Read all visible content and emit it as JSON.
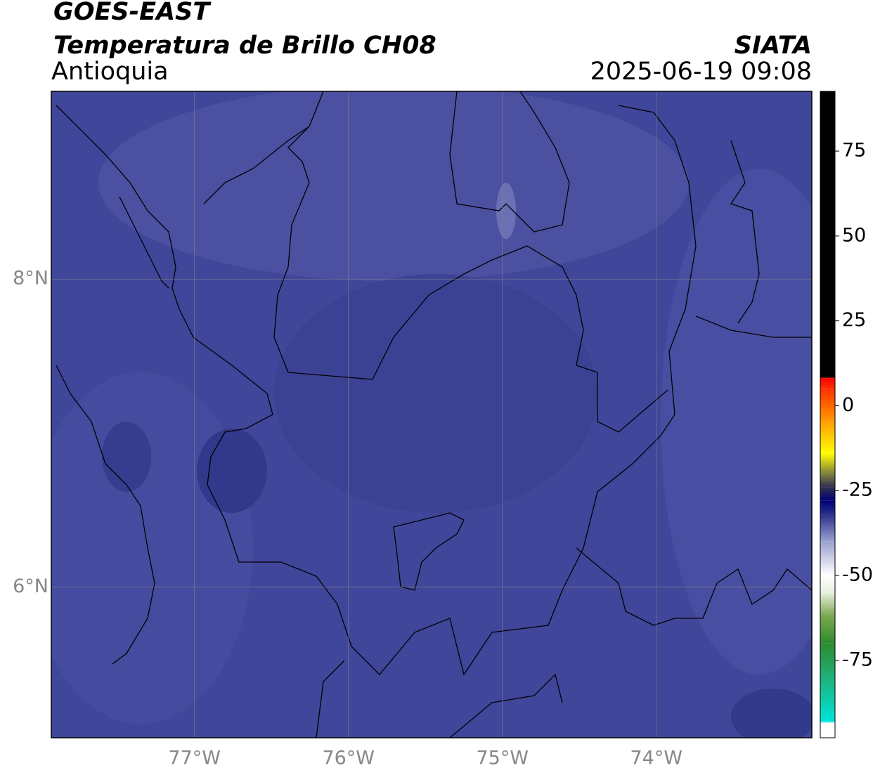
{
  "header": {
    "title": "GOES-EAST",
    "subtitle": "Temperatura de Brillo CH08",
    "region": "Antioquia",
    "source": "SIATA",
    "datetime": "2025-06-19 09:08"
  },
  "map": {
    "xlim": [
      -77.93,
      -72.99
    ],
    "ylim": [
      5.02,
      9.22
    ],
    "xticks": [
      {
        "value": -77,
        "label": "77°W"
      },
      {
        "value": -76,
        "label": "76°W"
      },
      {
        "value": -75,
        "label": "75°W"
      },
      {
        "value": -74,
        "label": "74°W"
      }
    ],
    "yticks": [
      {
        "value": 6,
        "label": "6°N"
      },
      {
        "value": 8,
        "label": "8°N"
      }
    ],
    "grid": true
  },
  "colorbar": {
    "lim": [
      -97.8,
      92.6
    ],
    "ticks": [
      75,
      50,
      25,
      0,
      -25,
      -50,
      -75
    ],
    "colormap": [
      {
        "value": -97.8,
        "color": "#ffffff"
      },
      {
        "value": -93.5,
        "color": "#ffffff"
      },
      {
        "value": -93,
        "color": "#00e5d8"
      },
      {
        "value": -80,
        "color": "#1fb07a"
      },
      {
        "value": -70,
        "color": "#2e8b2e"
      },
      {
        "value": -62,
        "color": "#7aa850"
      },
      {
        "value": -55,
        "color": "#e8f0e0"
      },
      {
        "value": -50,
        "color": "#ffffff"
      },
      {
        "value": -40,
        "color": "#9aa0d0"
      },
      {
        "value": -32,
        "color": "#2a2f8a"
      },
      {
        "value": -28,
        "color": "#00007a"
      },
      {
        "value": -24,
        "color": "#303050"
      },
      {
        "value": -20,
        "color": "#808040"
      },
      {
        "value": -14,
        "color": "#ffff00"
      },
      {
        "value": -5,
        "color": "#ffa000"
      },
      {
        "value": 5,
        "color": "#ff3000"
      },
      {
        "value": 8,
        "color": "#ff0000"
      },
      {
        "value": 8.5,
        "color": "#000000"
      },
      {
        "value": 92.6,
        "color": "#000000"
      }
    ]
  }
}
